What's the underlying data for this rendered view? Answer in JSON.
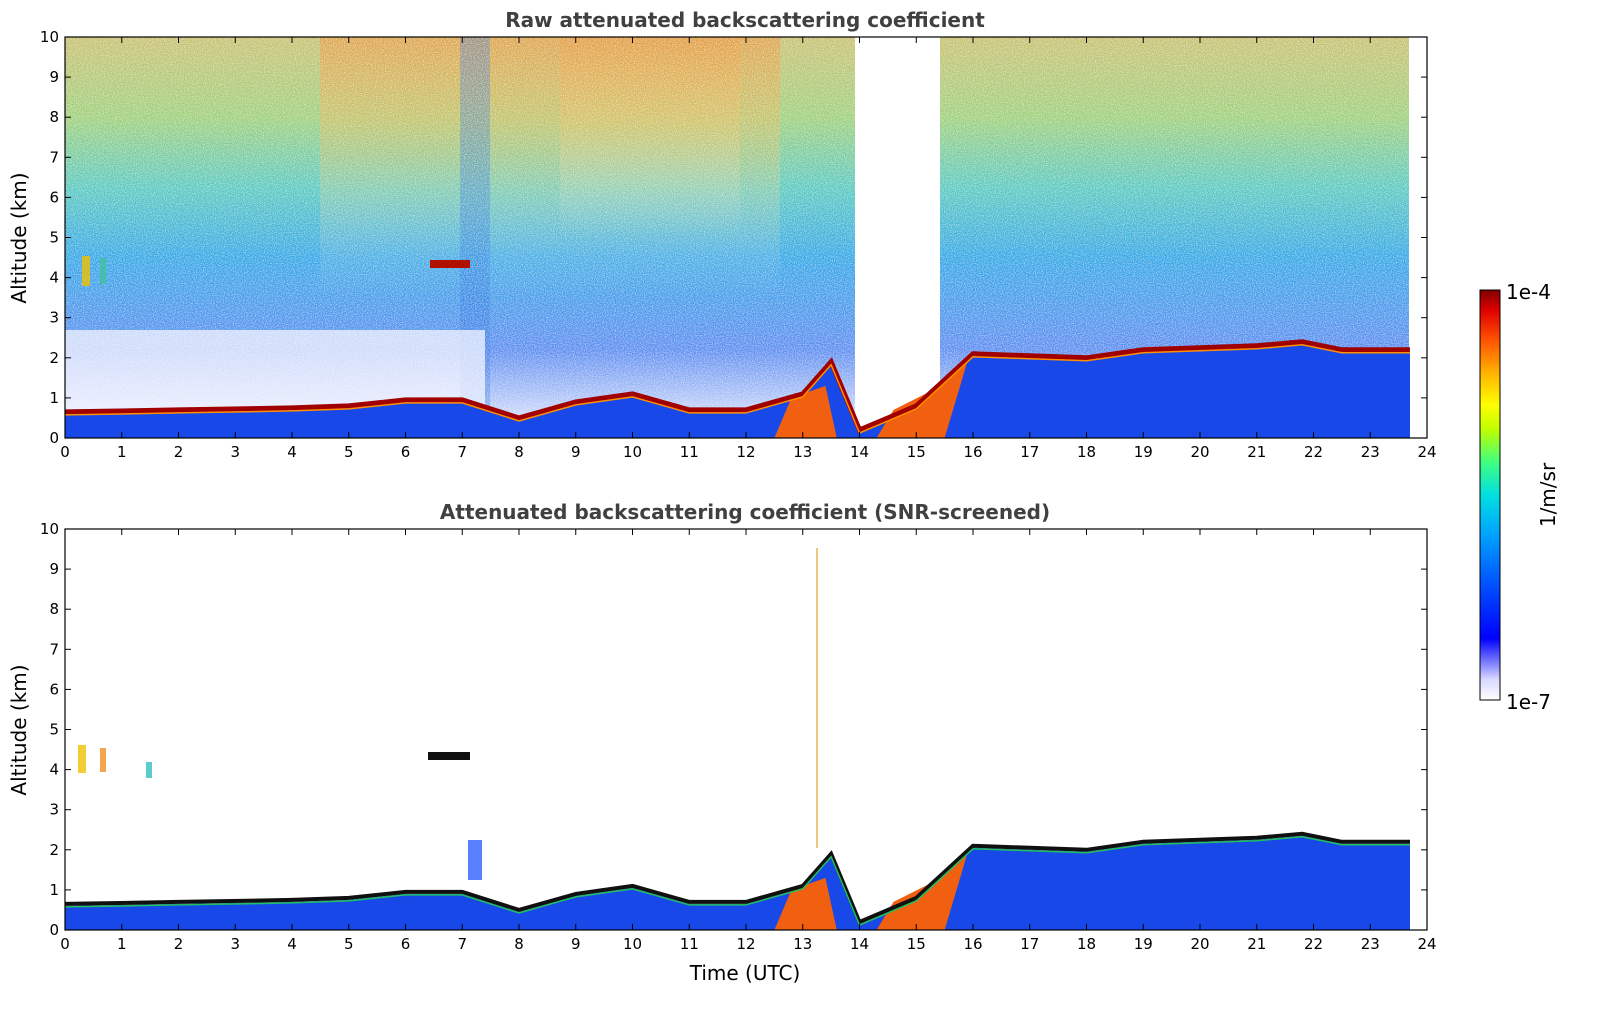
{
  "chart_data": [
    {
      "type": "heatmap",
      "title": "Raw attenuated backscattering coefficient",
      "xlabel": "",
      "ylabel": "Altitude (km)",
      "xlim": [
        0,
        24
      ],
      "ylim": [
        0,
        10
      ],
      "xticks": [
        "0",
        "1",
        "2",
        "3",
        "4",
        "5",
        "6",
        "7",
        "8",
        "9",
        "10",
        "11",
        "12",
        "13",
        "14",
        "15",
        "16",
        "17",
        "18",
        "19",
        "20",
        "21",
        "22",
        "23",
        "24"
      ],
      "yticks": [
        "0",
        "1",
        "2",
        "3",
        "4",
        "5",
        "6",
        "7",
        "8",
        "9",
        "10"
      ],
      "data_end_time": 23.7,
      "cloud_base_km": [
        [
          0,
          0.65
        ],
        [
          2,
          0.7
        ],
        [
          4,
          0.75
        ],
        [
          5,
          0.8
        ],
        [
          6,
          0.95
        ],
        [
          7,
          0.95
        ],
        [
          8,
          0.5
        ],
        [
          9,
          0.9
        ],
        [
          10,
          1.1
        ],
        [
          11,
          0.7
        ],
        [
          12,
          0.7
        ],
        [
          13,
          1.1
        ],
        [
          13.5,
          1.9
        ],
        [
          14,
          0.2
        ],
        [
          15,
          0.8
        ],
        [
          16,
          2.1
        ],
        [
          17,
          2.05
        ],
        [
          18,
          2.0
        ],
        [
          19,
          2.2
        ],
        [
          20,
          2.25
        ],
        [
          21,
          2.3
        ],
        [
          21.8,
          2.4
        ],
        [
          22.5,
          2.2
        ],
        [
          23.7,
          2.2
        ]
      ],
      "elevated_layer": {
        "time_range": [
          6.5,
          7.1
        ],
        "altitude_km": 4.3
      }
    },
    {
      "type": "heatmap",
      "title": "Attenuated backscattering coefficient (SNR-screened)",
      "xlabel": "Time (UTC)",
      "ylabel": "Altitude (km)",
      "xlim": [
        0,
        24
      ],
      "ylim": [
        0,
        10
      ],
      "xticks": [
        "0",
        "1",
        "2",
        "3",
        "4",
        "5",
        "6",
        "7",
        "8",
        "9",
        "10",
        "11",
        "12",
        "13",
        "14",
        "15",
        "16",
        "17",
        "18",
        "19",
        "20",
        "21",
        "22",
        "23",
        "24"
      ],
      "yticks": [
        "0",
        "1",
        "2",
        "3",
        "4",
        "5",
        "6",
        "7",
        "8",
        "9",
        "10"
      ],
      "data_end_time": 23.7
    }
  ],
  "colorbar": {
    "label": "1/m/sr",
    "max_label": "1e-4",
    "min_label": "1e-7",
    "colormap": [
      "#ffffff",
      "#d8d8ff",
      "#8080ff",
      "#0000ff",
      "#0050ff",
      "#00a0ff",
      "#00e0e0",
      "#40ff80",
      "#c0ff00",
      "#ffff00",
      "#ffb000",
      "#ff5000",
      "#e00000",
      "#800000"
    ]
  }
}
